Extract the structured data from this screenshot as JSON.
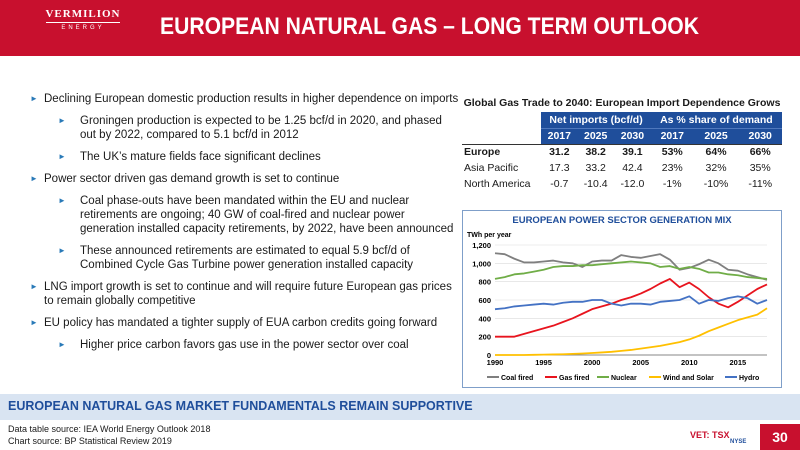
{
  "header": {
    "logo_name": "VERMILION",
    "logo_sub": "ENERGY",
    "title": "EUROPEAN NATURAL GAS – LONG TERM OUTLOOK"
  },
  "bullets": [
    {
      "level": 1,
      "text": "Declining European domestic production results in higher dependence on imports"
    },
    {
      "level": 2,
      "text": "Groningen production is expected to be 1.25 bcf/d in 2020, and phased out by 2022, compared to 5.1 bcf/d in 2012"
    },
    {
      "level": 2,
      "text": "The UK’s mature fields face significant declines"
    },
    {
      "level": 1,
      "text": "Power sector driven gas demand growth is set to continue"
    },
    {
      "level": 2,
      "text": "Coal phase-outs have been mandated within the EU and nuclear retirements are ongoing; 40 GW of coal-fired and nuclear power generation installed capacity retirements, by 2022, have been announced"
    },
    {
      "level": 2,
      "text": "These announced retirements are estimated to equal 5.9 bcf/d of Combined Cycle Gas Turbine power generation installed capacity"
    },
    {
      "level": 1,
      "text": "LNG import growth is set to continue and will require future European gas prices to remain globally competitive"
    },
    {
      "level": 1,
      "text": "EU policy has mandated a tighter supply of EUA carbon credits going forward"
    },
    {
      "level": 2,
      "text": "Higher price carbon favors gas use in the power sector over coal"
    }
  ],
  "gas_table": {
    "title": "Global Gas Trade to 2040: European Import Dependence Grows",
    "group_headers": [
      "Net imports (bcf/d)",
      "As % share of demand"
    ],
    "years": [
      "2017",
      "2025",
      "2030",
      "2017",
      "2025",
      "2030"
    ],
    "rows": [
      {
        "label": "Europe",
        "values": [
          "31.2",
          "38.2",
          "39.1",
          "53%",
          "64%",
          "66%"
        ]
      },
      {
        "label": "Asia Pacific",
        "values": [
          "17.3",
          "33.2",
          "42.4",
          "23%",
          "32%",
          "35%"
        ]
      },
      {
        "label": "North America",
        "values": [
          "-0.7",
          "-10.4",
          "-12.0",
          "-1%",
          "-10%",
          "-11%"
        ]
      }
    ]
  },
  "chart_data": {
    "type": "line",
    "title": "EUROPEAN POWER SECTOR GENERATION MIX",
    "ylabel": "TWh per year",
    "xlabel": "",
    "ylim": [
      0,
      1200
    ],
    "yticks": [
      "0",
      "200",
      "400",
      "600",
      "800",
      "1,000",
      "1,200"
    ],
    "xlim": [
      1990,
      2018
    ],
    "xticks": [
      "1990",
      "1995",
      "2000",
      "2005",
      "2010",
      "2015"
    ],
    "x": [
      1990,
      1991,
      1992,
      1993,
      1994,
      1995,
      1996,
      1997,
      1998,
      1999,
      2000,
      2001,
      2002,
      2003,
      2004,
      2005,
      2006,
      2007,
      2008,
      2009,
      2010,
      2011,
      2012,
      2013,
      2014,
      2015,
      2016,
      2017,
      2018
    ],
    "legend_position": "bottom",
    "series": [
      {
        "name": "Coal fired",
        "color": "#7f7f7f",
        "values": [
          1110,
          1100,
          1050,
          1010,
          1010,
          1020,
          1030,
          1010,
          1000,
          960,
          1020,
          1030,
          1030,
          1090,
          1070,
          1060,
          1080,
          1100,
          1040,
          930,
          950,
          990,
          1040,
          1000,
          930,
          920,
          880,
          850,
          820
        ]
      },
      {
        "name": "Gas fired",
        "color": "#e8141e",
        "values": [
          200,
          200,
          200,
          230,
          260,
          290,
          320,
          360,
          400,
          450,
          500,
          530,
          560,
          600,
          630,
          670,
          720,
          780,
          830,
          740,
          790,
          720,
          630,
          560,
          520,
          580,
          650,
          720,
          770
        ]
      },
      {
        "name": "Nuclear",
        "color": "#70ad47",
        "values": [
          830,
          850,
          880,
          890,
          910,
          930,
          960,
          970,
          970,
          980,
          980,
          990,
          1000,
          1010,
          1020,
          1010,
          1000,
          960,
          970,
          940,
          960,
          940,
          900,
          900,
          880,
          870,
          850,
          840,
          830
        ]
      },
      {
        "name": "Wind and Solar",
        "color": "#ffc000",
        "values": [
          0,
          0,
          0,
          0,
          2,
          4,
          6,
          8,
          12,
          16,
          22,
          28,
          35,
          45,
          55,
          70,
          85,
          100,
          120,
          140,
          170,
          210,
          260,
          300,
          340,
          380,
          410,
          440,
          510
        ]
      },
      {
        "name": "Hydro",
        "color": "#4472c4",
        "values": [
          500,
          510,
          530,
          540,
          550,
          560,
          550,
          570,
          580,
          580,
          600,
          600,
          560,
          540,
          560,
          560,
          550,
          580,
          590,
          600,
          640,
          560,
          600,
          590,
          620,
          640,
          620,
          560,
          600
        ]
      }
    ]
  },
  "footer": {
    "banner": "EUROPEAN NATURAL GAS MARKET FUNDAMENTALS REMAIN SUPPORTIVE",
    "source1": "Data table source: IEA World Energy Outlook 2018",
    "source2": "Chart source: BP Statistical Review 2019",
    "ticker": "VET: TSX",
    "exchange": "NYSE",
    "page": "30"
  },
  "colors": {
    "brand_red": "#c8102e",
    "brand_blue": "#1f4e9b",
    "footer_band": "#d9e4f2"
  }
}
